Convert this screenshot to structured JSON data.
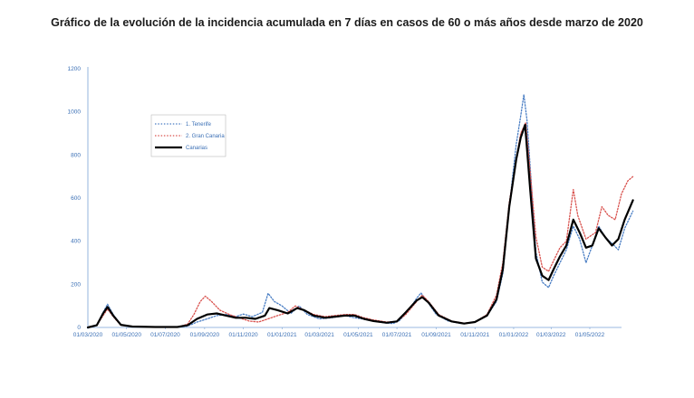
{
  "chart_data": {
    "type": "line",
    "title": "Gráfico de la evolución de la incidencia acumulada en 7 días en casos de 60 o más años desde marzo de 2020",
    "xlabel": "",
    "ylabel": "",
    "x_tick_labels": [
      "01/03/2020",
      "01/05/2020",
      "01/07/2020",
      "01/09/2020",
      "01/11/2020",
      "01/01/2021",
      "01/03/2021",
      "01/05/2021",
      "01/07/2021",
      "01/09/2021",
      "01/11/2021",
      "01/01/2022",
      "01/03/2022",
      "01/05/2022"
    ],
    "y_ticks": [
      0,
      200,
      400,
      600,
      800,
      1000,
      1200
    ],
    "ylim": [
      0,
      1200
    ],
    "xlim": [
      "2020-03-01",
      "2022-07-08"
    ],
    "grid": false,
    "legend_position": "top-left",
    "series": [
      {
        "name": "1. Tenerife",
        "color": "#4a7ec4",
        "style": "dotted",
        "points": [
          [
            "2020-03-01",
            0
          ],
          [
            "2020-03-15",
            10
          ],
          [
            "2020-03-25",
            70
          ],
          [
            "2020-04-01",
            108
          ],
          [
            "2020-04-10",
            60
          ],
          [
            "2020-04-22",
            12
          ],
          [
            "2020-05-10",
            4
          ],
          [
            "2020-06-15",
            2
          ],
          [
            "2020-07-20",
            2
          ],
          [
            "2020-08-05",
            6
          ],
          [
            "2020-08-20",
            25
          ],
          [
            "2020-09-05",
            40
          ],
          [
            "2020-09-20",
            55
          ],
          [
            "2020-10-05",
            60
          ],
          [
            "2020-10-20",
            50
          ],
          [
            "2020-11-01",
            62
          ],
          [
            "2020-11-15",
            50
          ],
          [
            "2020-12-01",
            70
          ],
          [
            "2020-12-10",
            158
          ],
          [
            "2020-12-20",
            120
          ],
          [
            "2021-01-01",
            100
          ],
          [
            "2021-01-15",
            65
          ],
          [
            "2021-01-28",
            100
          ],
          [
            "2021-02-10",
            60
          ],
          [
            "2021-03-01",
            40
          ],
          [
            "2021-03-20",
            45
          ],
          [
            "2021-04-10",
            55
          ],
          [
            "2021-04-25",
            45
          ],
          [
            "2021-05-10",
            38
          ],
          [
            "2021-05-25",
            30
          ],
          [
            "2021-06-15",
            20
          ],
          [
            "2021-06-25",
            18
          ],
          [
            "2021-07-05",
            32
          ],
          [
            "2021-07-20",
            80
          ],
          [
            "2021-08-01",
            135
          ],
          [
            "2021-08-08",
            160
          ],
          [
            "2021-08-18",
            120
          ],
          [
            "2021-09-01",
            60
          ],
          [
            "2021-09-20",
            30
          ],
          [
            "2021-10-10",
            18
          ],
          [
            "2021-11-01",
            25
          ],
          [
            "2021-11-20",
            55
          ],
          [
            "2021-12-05",
            120
          ],
          [
            "2021-12-15",
            250
          ],
          [
            "2021-12-25",
            560
          ],
          [
            "2022-01-05",
            850
          ],
          [
            "2022-01-12",
            980
          ],
          [
            "2022-01-17",
            1080
          ],
          [
            "2022-01-22",
            960
          ],
          [
            "2022-01-28",
            700
          ],
          [
            "2022-02-05",
            350
          ],
          [
            "2022-02-15",
            210
          ],
          [
            "2022-02-25",
            185
          ],
          [
            "2022-03-05",
            240
          ],
          [
            "2022-03-15",
            300
          ],
          [
            "2022-03-25",
            360
          ],
          [
            "2022-04-05",
            470
          ],
          [
            "2022-04-15",
            410
          ],
          [
            "2022-04-25",
            300
          ],
          [
            "2022-05-05",
            380
          ],
          [
            "2022-05-15",
            470
          ],
          [
            "2022-05-25",
            420
          ],
          [
            "2022-06-05",
            390
          ],
          [
            "2022-06-15",
            360
          ],
          [
            "2022-06-25",
            460
          ],
          [
            "2022-07-08",
            540
          ]
        ]
      },
      {
        "name": "2. Gran Canaria",
        "color": "#d9534f",
        "style": "dotted",
        "points": [
          [
            "2020-03-01",
            0
          ],
          [
            "2020-03-15",
            10
          ],
          [
            "2020-03-25",
            55
          ],
          [
            "2020-04-01",
            85
          ],
          [
            "2020-04-10",
            50
          ],
          [
            "2020-04-22",
            10
          ],
          [
            "2020-05-10",
            3
          ],
          [
            "2020-06-15",
            2
          ],
          [
            "2020-07-20",
            2
          ],
          [
            "2020-08-05",
            15
          ],
          [
            "2020-08-15",
            60
          ],
          [
            "2020-08-25",
            120
          ],
          [
            "2020-09-02",
            145
          ],
          [
            "2020-09-12",
            120
          ],
          [
            "2020-09-25",
            80
          ],
          [
            "2020-10-10",
            60
          ],
          [
            "2020-10-25",
            45
          ],
          [
            "2020-11-10",
            30
          ],
          [
            "2020-11-25",
            25
          ],
          [
            "2020-12-10",
            40
          ],
          [
            "2020-12-25",
            55
          ],
          [
            "2021-01-10",
            70
          ],
          [
            "2021-01-22",
            100
          ],
          [
            "2021-02-05",
            80
          ],
          [
            "2021-02-20",
            60
          ],
          [
            "2021-03-10",
            50
          ],
          [
            "2021-03-25",
            55
          ],
          [
            "2021-04-10",
            60
          ],
          [
            "2021-04-25",
            60
          ],
          [
            "2021-05-10",
            45
          ],
          [
            "2021-05-25",
            35
          ],
          [
            "2021-06-15",
            25
          ],
          [
            "2021-07-01",
            28
          ],
          [
            "2021-07-15",
            60
          ],
          [
            "2021-08-01",
            120
          ],
          [
            "2021-08-10",
            150
          ],
          [
            "2021-08-20",
            120
          ],
          [
            "2021-09-05",
            60
          ],
          [
            "2021-09-25",
            30
          ],
          [
            "2021-10-15",
            20
          ],
          [
            "2021-11-01",
            25
          ],
          [
            "2021-11-20",
            60
          ],
          [
            "2021-12-05",
            150
          ],
          [
            "2021-12-15",
            300
          ],
          [
            "2021-12-25",
            580
          ],
          [
            "2022-01-05",
            780
          ],
          [
            "2022-01-12",
            900
          ],
          [
            "2022-01-20",
            950
          ],
          [
            "2022-01-27",
            720
          ],
          [
            "2022-02-05",
            420
          ],
          [
            "2022-02-15",
            280
          ],
          [
            "2022-02-25",
            260
          ],
          [
            "2022-03-05",
            310
          ],
          [
            "2022-03-15",
            370
          ],
          [
            "2022-03-25",
            400
          ],
          [
            "2022-04-05",
            640
          ],
          [
            "2022-04-12",
            520
          ],
          [
            "2022-04-25",
            410
          ],
          [
            "2022-05-10",
            440
          ],
          [
            "2022-05-20",
            560
          ],
          [
            "2022-05-30",
            520
          ],
          [
            "2022-06-10",
            500
          ],
          [
            "2022-06-20",
            620
          ],
          [
            "2022-06-30",
            680
          ],
          [
            "2022-07-08",
            700
          ]
        ]
      },
      {
        "name": "Canarias",
        "color": "#000000",
        "style": "solid",
        "points": [
          [
            "2020-03-01",
            0
          ],
          [
            "2020-03-15",
            10
          ],
          [
            "2020-03-25",
            65
          ],
          [
            "2020-04-01",
            95
          ],
          [
            "2020-04-10",
            55
          ],
          [
            "2020-04-22",
            12
          ],
          [
            "2020-05-10",
            4
          ],
          [
            "2020-06-15",
            2
          ],
          [
            "2020-07-20",
            2
          ],
          [
            "2020-08-05",
            10
          ],
          [
            "2020-08-20",
            40
          ],
          [
            "2020-09-05",
            60
          ],
          [
            "2020-09-20",
            65
          ],
          [
            "2020-10-05",
            55
          ],
          [
            "2020-10-20",
            45
          ],
          [
            "2020-11-05",
            45
          ],
          [
            "2020-11-20",
            40
          ],
          [
            "2020-12-05",
            55
          ],
          [
            "2020-12-12",
            90
          ],
          [
            "2020-12-25",
            80
          ],
          [
            "2021-01-10",
            65
          ],
          [
            "2021-01-25",
            90
          ],
          [
            "2021-02-05",
            80
          ],
          [
            "2021-02-20",
            55
          ],
          [
            "2021-03-10",
            45
          ],
          [
            "2021-03-25",
            50
          ],
          [
            "2021-04-10",
            55
          ],
          [
            "2021-04-25",
            55
          ],
          [
            "2021-05-10",
            40
          ],
          [
            "2021-05-25",
            30
          ],
          [
            "2021-06-15",
            22
          ],
          [
            "2021-07-01",
            28
          ],
          [
            "2021-07-15",
            70
          ],
          [
            "2021-08-01",
            125
          ],
          [
            "2021-08-10",
            140
          ],
          [
            "2021-08-20",
            115
          ],
          [
            "2021-09-05",
            55
          ],
          [
            "2021-09-25",
            28
          ],
          [
            "2021-10-15",
            18
          ],
          [
            "2021-11-01",
            25
          ],
          [
            "2021-11-20",
            55
          ],
          [
            "2021-12-05",
            130
          ],
          [
            "2021-12-15",
            270
          ],
          [
            "2021-12-25",
            560
          ],
          [
            "2022-01-05",
            780
          ],
          [
            "2022-01-12",
            880
          ],
          [
            "2022-01-19",
            940
          ],
          [
            "2022-01-27",
            640
          ],
          [
            "2022-02-05",
            320
          ],
          [
            "2022-02-15",
            240
          ],
          [
            "2022-02-25",
            220
          ],
          [
            "2022-03-05",
            270
          ],
          [
            "2022-03-15",
            330
          ],
          [
            "2022-03-25",
            380
          ],
          [
            "2022-04-05",
            500
          ],
          [
            "2022-04-15",
            440
          ],
          [
            "2022-04-25",
            370
          ],
          [
            "2022-05-05",
            380
          ],
          [
            "2022-05-15",
            460
          ],
          [
            "2022-05-25",
            420
          ],
          [
            "2022-06-05",
            380
          ],
          [
            "2022-06-15",
            410
          ],
          [
            "2022-06-25",
            500
          ],
          [
            "2022-07-08",
            590
          ]
        ]
      }
    ]
  }
}
